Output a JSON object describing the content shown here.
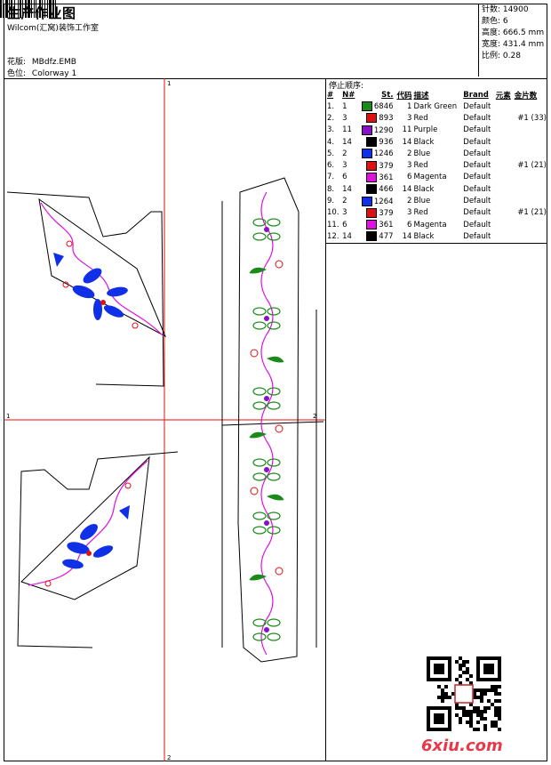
{
  "header": {
    "title": "生产作业图",
    "studio": "Wilcom(汇窝)装饰工作室",
    "design_label": "花版:",
    "design_value": "MBdfz.EMB",
    "colorway_label": "色位:",
    "colorway_value": "Colorway 1"
  },
  "stats": {
    "stitches_label": "针数:",
    "stitches_value": "14900",
    "colors_label": "颜色:",
    "colors_value": "6",
    "height_label": "高度:",
    "height_value": "666.5 mm",
    "width_label": "宽度:",
    "width_value": "431.4 mm",
    "scale_label": "比例:",
    "scale_value": "0.28"
  },
  "stop_sequence": {
    "title": "停止顺序:",
    "columns": [
      "#",
      "N#",
      "St.",
      "代码",
      "描述",
      "Brand",
      "元素",
      "金片数"
    ],
    "rows": [
      {
        "no": "1.",
        "n": "1",
        "st": "6846",
        "code": "1",
        "desc": "Dark Green",
        "brand": "Default",
        "element": "",
        "sequin": "",
        "color": "#1a8a1a"
      },
      {
        "no": "2.",
        "n": "3",
        "st": "893",
        "code": "3",
        "desc": "Red",
        "brand": "Default",
        "element": "",
        "sequin": "#1 (33)",
        "color": "#e01010"
      },
      {
        "no": "3.",
        "n": "11",
        "st": "1290",
        "code": "11",
        "desc": "Purple",
        "brand": "Default",
        "element": "",
        "sequin": "",
        "color": "#8a10c8"
      },
      {
        "no": "4.",
        "n": "14",
        "st": "936",
        "code": "14",
        "desc": "Black",
        "brand": "Default",
        "element": "",
        "sequin": "",
        "color": "#000000"
      },
      {
        "no": "5.",
        "n": "2",
        "st": "1246",
        "code": "2",
        "desc": "Blue",
        "brand": "Default",
        "element": "",
        "sequin": "",
        "color": "#1030e8"
      },
      {
        "no": "6.",
        "n": "3",
        "st": "379",
        "code": "3",
        "desc": "Red",
        "brand": "Default",
        "element": "",
        "sequin": "#1 (21)",
        "color": "#e01010"
      },
      {
        "no": "7.",
        "n": "6",
        "st": "361",
        "code": "6",
        "desc": "Magenta",
        "brand": "Default",
        "element": "",
        "sequin": "",
        "color": "#e010e0"
      },
      {
        "no": "8.",
        "n": "14",
        "st": "466",
        "code": "14",
        "desc": "Black",
        "brand": "Default",
        "element": "",
        "sequin": "",
        "color": "#000000"
      },
      {
        "no": "9.",
        "n": "2",
        "st": "1264",
        "code": "2",
        "desc": "Blue",
        "brand": "Default",
        "element": "",
        "sequin": "",
        "color": "#1030e8"
      },
      {
        "no": "10.",
        "n": "3",
        "st": "379",
        "code": "3",
        "desc": "Red",
        "brand": "Default",
        "element": "",
        "sequin": "#1 (21)",
        "color": "#e01010"
      },
      {
        "no": "11.",
        "n": "6",
        "st": "361",
        "code": "6",
        "desc": "Magenta",
        "brand": "Default",
        "element": "",
        "sequin": "",
        "color": "#e010e0"
      },
      {
        "no": "12.",
        "n": "14",
        "st": "477",
        "code": "14",
        "desc": "Black",
        "brand": "Default",
        "element": "",
        "sequin": "",
        "color": "#000000"
      }
    ]
  },
  "canvas": {
    "guide_labels": [
      "1",
      "2",
      "1",
      "2"
    ]
  },
  "watermark": "6xiu.com"
}
